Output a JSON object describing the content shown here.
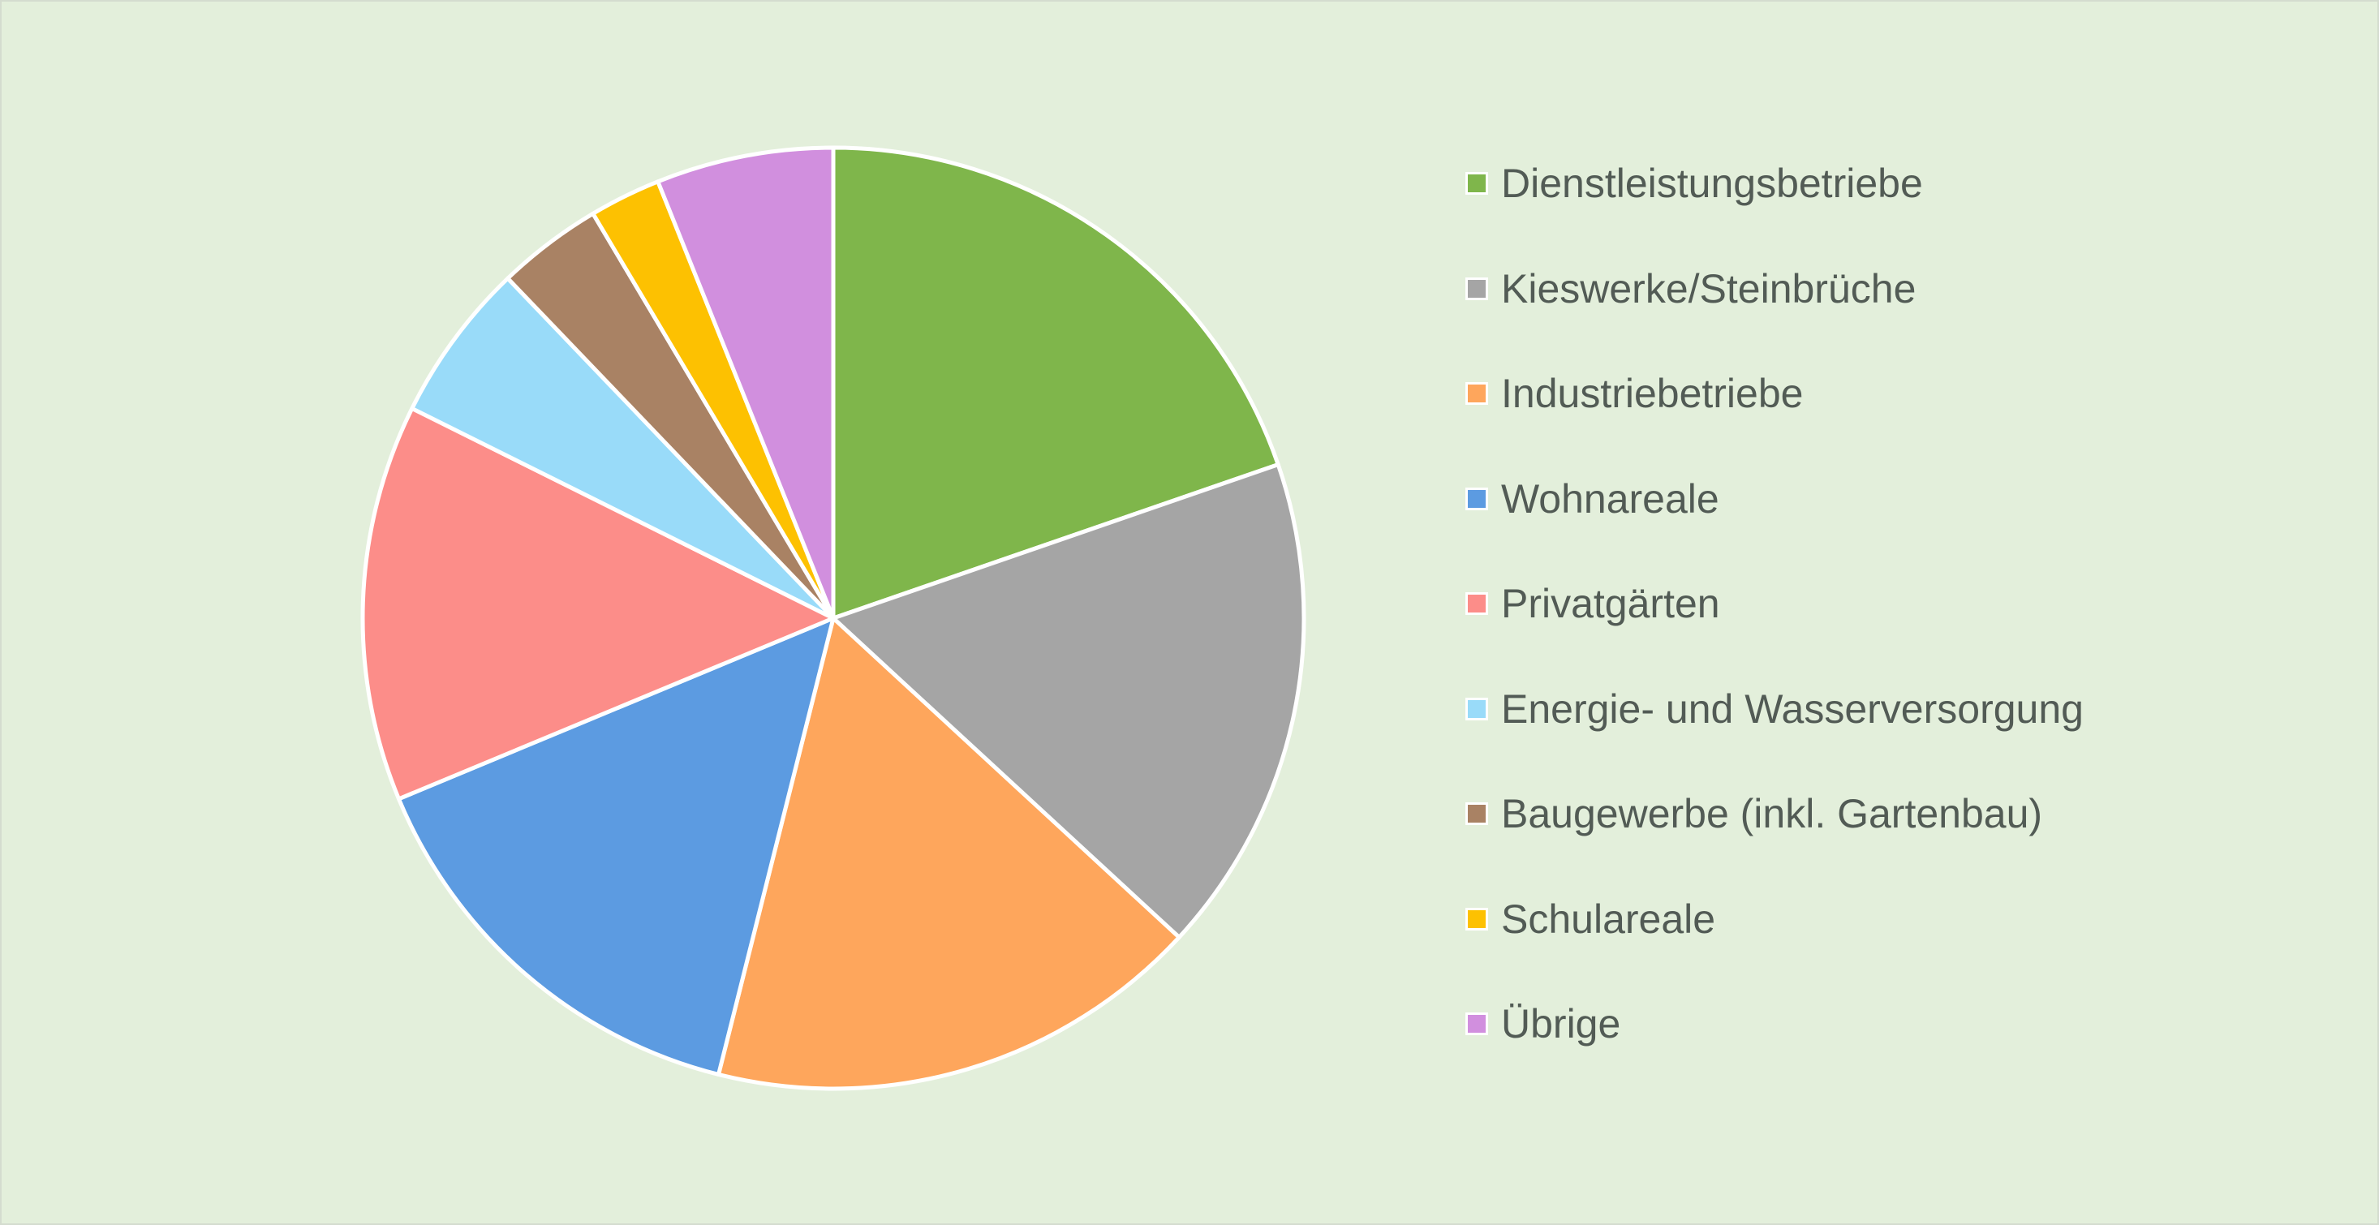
{
  "chart_data": {
    "type": "pie",
    "title": "",
    "start_angle_deg": 0,
    "direction": "clockwise",
    "legend_position": "right",
    "slices": [
      {
        "label": "Dienstleistungsbetriebe",
        "value": 20.1,
        "color": "#7fb64b"
      },
      {
        "label": "Kieswerke/Steinbrüche",
        "value": 17.5,
        "color": "#a5a5a5"
      },
      {
        "label": "Industriebetriebe",
        "value": 17.4,
        "color": "#fea65c"
      },
      {
        "label": "Wohnareale",
        "value": 15.1,
        "color": "#5c9be1"
      },
      {
        "label": "Privatgärten",
        "value": 13.9,
        "color": "#fc8d89"
      },
      {
        "label": "Energie- und Wasserversorgung",
        "value": 5.6,
        "color": "#99dbf9"
      },
      {
        "label": "Baugewerbe (inkl. Gartenbau)",
        "value": 3.7,
        "color": "#a98264"
      },
      {
        "label": "Schulareale",
        "value": 2.5,
        "color": "#fdc101"
      },
      {
        "label": "Übrige",
        "value": 6.2,
        "color": "#d18fde"
      }
    ]
  }
}
